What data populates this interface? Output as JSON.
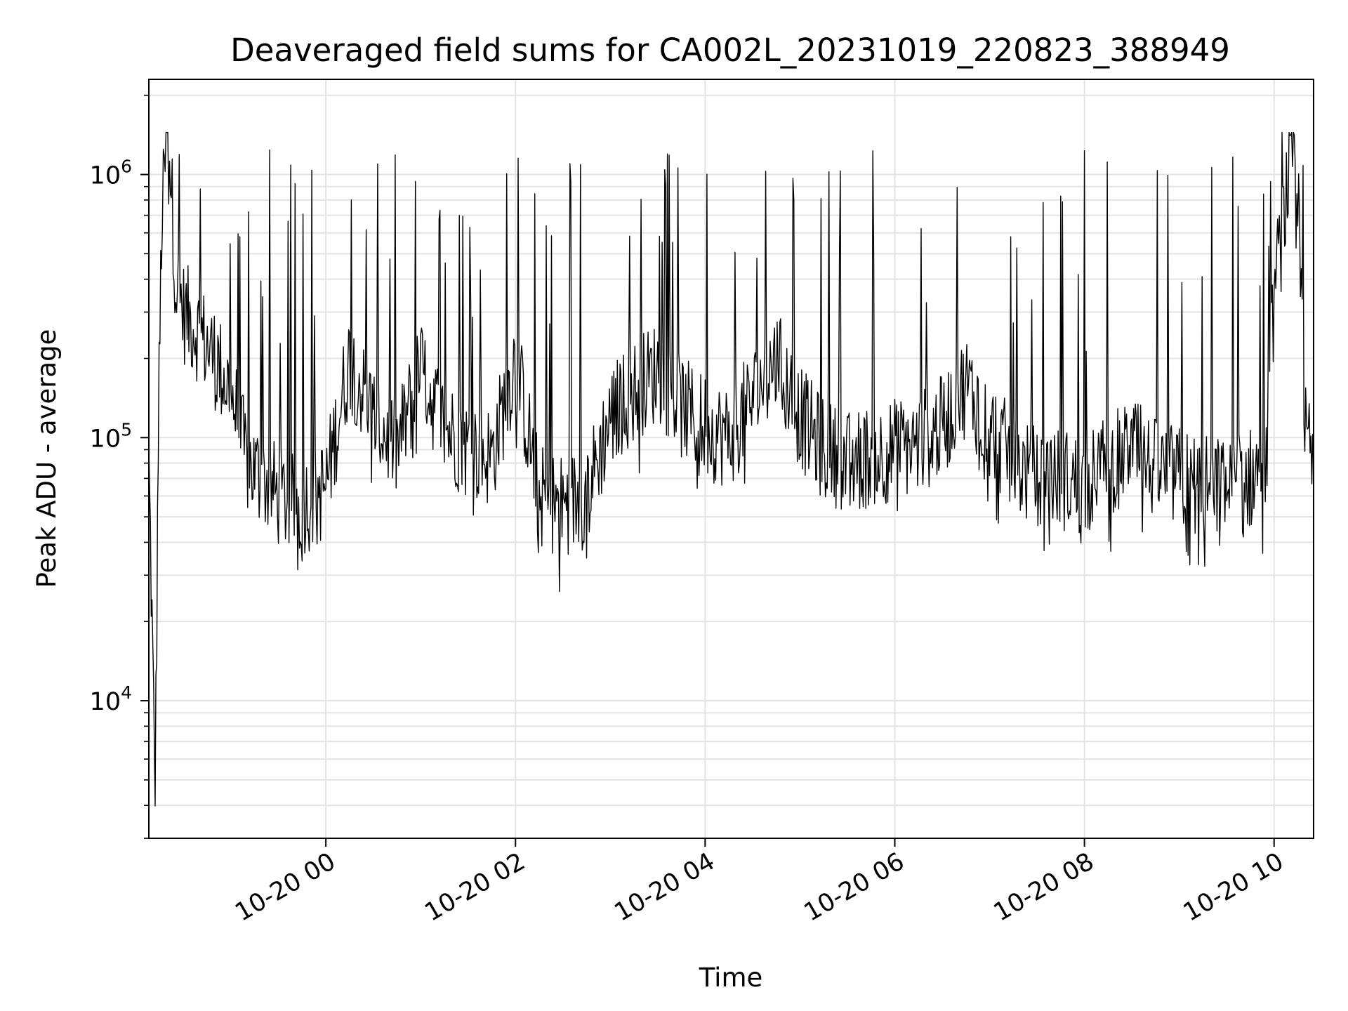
{
  "chart_data": {
    "type": "line",
    "title": "Deaveraged field sums for CA002L_20231019_220823_388949",
    "xlabel": "Time",
    "ylabel": "Peak ADU - average",
    "y_scale": "log",
    "ylim": [
      3000,
      2300000
    ],
    "xlim": [
      "2023-10-19 22:08",
      "2023-10-20 10:25"
    ],
    "grid": true,
    "line_color": "#000000",
    "x_ticks": [
      {
        "t": "2023-10-20 00:00",
        "label": "10-20 00"
      },
      {
        "t": "2023-10-20 02:00",
        "label": "10-20 02"
      },
      {
        "t": "2023-10-20 04:00",
        "label": "10-20 04"
      },
      {
        "t": "2023-10-20 06:00",
        "label": "10-20 06"
      },
      {
        "t": "2023-10-20 08:00",
        "label": "10-20 08"
      },
      {
        "t": "2023-10-20 10:00",
        "label": "10-20 10"
      }
    ],
    "y_ticks": [
      {
        "value": 10000,
        "base": "10",
        "exp": "4"
      },
      {
        "value": 100000,
        "base": "10",
        "exp": "5"
      },
      {
        "value": 1000000,
        "base": "10",
        "exp": "6"
      }
    ],
    "series": [
      {
        "x": [
          "2023-10-19 22:08",
          "2023-10-19 22:10",
          "2023-10-19 22:12",
          "2023-10-19 22:14",
          "2023-10-19 22:16",
          "2023-10-19 22:20",
          "2023-10-19 22:25",
          "2023-10-19 22:30",
          "2023-10-19 22:40",
          "2023-10-19 22:50",
          "2023-10-19 23:00",
          "2023-10-19 23:10",
          "2023-10-19 23:20",
          "2023-10-19 23:30",
          "2023-10-19 23:40",
          "2023-10-19 23:50",
          "2023-10-20 00:00",
          "2023-10-20 00:15",
          "2023-10-20 00:30",
          "2023-10-20 00:45",
          "2023-10-20 01:00",
          "2023-10-20 01:15",
          "2023-10-20 01:30",
          "2023-10-20 01:45",
          "2023-10-20 02:00",
          "2023-10-20 02:15",
          "2023-10-20 02:30",
          "2023-10-20 02:45",
          "2023-10-20 03:00",
          "2023-10-20 03:15",
          "2023-10-20 03:30",
          "2023-10-20 03:45",
          "2023-10-20 04:00",
          "2023-10-20 04:15",
          "2023-10-20 04:30",
          "2023-10-20 04:45",
          "2023-10-20 05:00",
          "2023-10-20 05:15",
          "2023-10-20 05:30",
          "2023-10-20 05:45",
          "2023-10-20 06:00",
          "2023-10-20 06:15",
          "2023-10-20 06:30",
          "2023-10-20 06:45",
          "2023-10-20 07:00",
          "2023-10-20 07:15",
          "2023-10-20 07:30",
          "2023-10-20 07:45",
          "2023-10-20 08:00",
          "2023-10-20 08:15",
          "2023-10-20 08:30",
          "2023-10-20 08:45",
          "2023-10-20 09:00",
          "2023-10-20 09:15",
          "2023-10-20 09:30",
          "2023-10-20 09:45",
          "2023-10-20 09:55",
          "2023-10-20 10:00",
          "2023-10-20 10:05",
          "2023-10-20 10:10",
          "2023-10-20 10:15",
          "2023-10-20 10:20",
          "2023-10-20 10:25"
        ],
        "y": [
          80000,
          20000,
          4000,
          100000,
          600000,
          1700000,
          400000,
          300000,
          250000,
          200000,
          150000,
          80000,
          70000,
          60000,
          55000,
          58000,
          65000,
          200000,
          120000,
          90000,
          180000,
          110000,
          90000,
          85000,
          200000,
          60000,
          55000,
          60000,
          120000,
          150000,
          180000,
          130000,
          110000,
          100000,
          140000,
          200000,
          120000,
          90000,
          80000,
          85000,
          90000,
          95000,
          110000,
          160000,
          110000,
          80000,
          70000,
          70000,
          65000,
          80000,
          90000,
          75000,
          70000,
          65000,
          65000,
          70000,
          80000,
          350000,
          600000,
          1100000,
          800000,
          100000,
          80000
        ]
      }
    ]
  }
}
